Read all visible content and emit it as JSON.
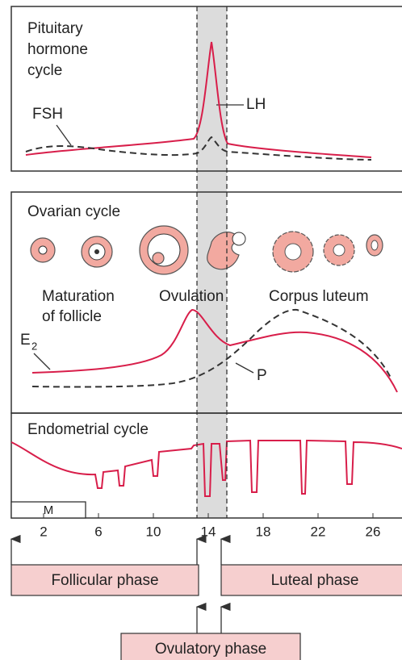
{
  "pituitary": {
    "title_lines": [
      "Pituitary",
      "hormone",
      "cycle"
    ],
    "fsh": "FSH",
    "lh": "LH"
  },
  "ovarian": {
    "title": "Ovarian cycle",
    "maturation_lines": [
      "Maturation",
      "of follicle"
    ],
    "ovulation": "Ovulation",
    "corpus_luteum": "Corpus luteum",
    "e2": {
      "base": "E",
      "sub": "2"
    },
    "p": "P"
  },
  "endometrial": {
    "title": "Endometrial cycle",
    "m": "M"
  },
  "days": [
    2,
    6,
    10,
    14,
    18,
    22,
    26
  ],
  "phases": {
    "follicular": "Follicular phase",
    "luteal": "Luteal phase",
    "ovulatory": "Ovulatory phase"
  }
}
